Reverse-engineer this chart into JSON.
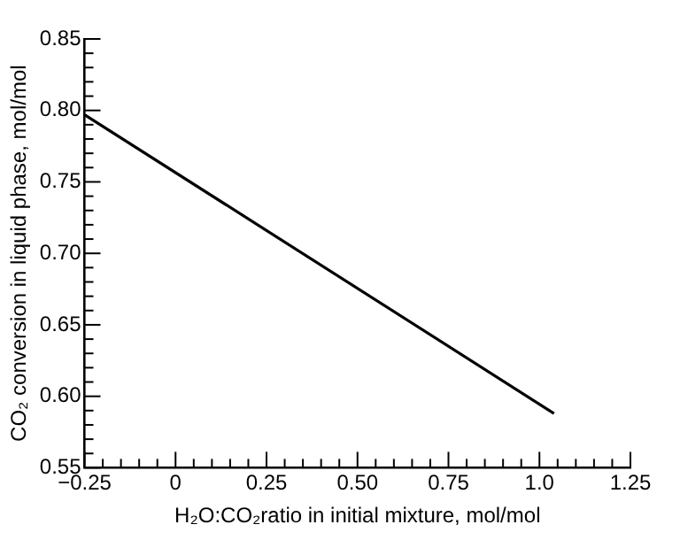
{
  "chart_data": {
    "type": "line",
    "xlabel": "H₂O:CO₂ratio in initial mixture, mol/mol",
    "ylabel": "CO₂ conversion in liquid phase, mol/mol",
    "x": [
      -0.25,
      1.04
    ],
    "series": [
      {
        "color": "#000000",
        "values": [
          0.797,
          0.588
        ]
      }
    ],
    "xlim": [
      -0.25,
      1.25
    ],
    "xticks": [
      {
        "value": -0.25,
        "label": "−0.25"
      },
      {
        "value": -0.2,
        "label": null
      },
      {
        "value": -0.15,
        "label": null
      },
      {
        "value": -0.1,
        "label": null
      },
      {
        "value": -0.05,
        "label": null
      },
      0,
      {
        "value": 0.05,
        "label": null
      },
      {
        "value": 0.1,
        "label": null
      },
      {
        "value": 0.15,
        "label": null
      },
      {
        "value": 0.2,
        "label": null
      },
      0.25,
      {
        "value": 0.3,
        "label": null
      },
      {
        "value": 0.35,
        "label": null
      },
      {
        "value": 0.4,
        "label": null
      },
      {
        "value": 0.45,
        "label": null
      },
      {
        "value": 0.5,
        "label": "0.50"
      },
      {
        "value": 0.55,
        "label": null
      },
      {
        "value": 0.6,
        "label": null
      },
      {
        "value": 0.65,
        "label": null
      },
      {
        "value": 0.7,
        "label": null
      },
      0.75,
      {
        "value": 0.8,
        "label": null
      },
      {
        "value": 0.85,
        "label": null
      },
      {
        "value": 0.9,
        "label": null
      },
      {
        "value": 0.95,
        "label": null
      },
      {
        "value": 1,
        "label": "1.0"
      },
      {
        "value": 1.05,
        "label": null
      },
      {
        "value": 1.1,
        "label": null
      },
      {
        "value": 1.15,
        "label": null
      },
      {
        "value": 1.2,
        "label": null
      },
      1.25
    ],
    "ylim": [
      0.55,
      0.85
    ],
    "yticks": [
      0.55,
      {
        "value": 0.56,
        "label": null
      },
      {
        "value": 0.57,
        "label": null
      },
      {
        "value": 0.58,
        "label": null
      },
      {
        "value": 0.59,
        "label": null
      },
      {
        "value": 0.6,
        "label": "0.60"
      },
      {
        "value": 0.61,
        "label": null
      },
      {
        "value": 0.62,
        "label": null
      },
      {
        "value": 0.63,
        "label": null
      },
      {
        "value": 0.64,
        "label": null
      },
      0.65,
      {
        "value": 0.66,
        "label": null
      },
      {
        "value": 0.67,
        "label": null
      },
      {
        "value": 0.68,
        "label": null
      },
      {
        "value": 0.69,
        "label": null
      },
      {
        "value": 0.7,
        "label": "0.70"
      },
      {
        "value": 0.71,
        "label": null
      },
      {
        "value": 0.72,
        "label": null
      },
      {
        "value": 0.73,
        "label": null
      },
      {
        "value": 0.74,
        "label": null
      },
      0.75,
      {
        "value": 0.76,
        "label": null
      },
      {
        "value": 0.77,
        "label": null
      },
      {
        "value": 0.78,
        "label": null
      },
      {
        "value": 0.79,
        "label": null
      },
      {
        "value": 0.8,
        "label": "0.80"
      },
      {
        "value": 0.81,
        "label": null
      },
      {
        "value": 0.82,
        "label": null
      },
      {
        "value": 0.83,
        "label": null
      },
      {
        "value": 0.84,
        "label": null
      },
      0.85
    ],
    "grid": false,
    "legend": false,
    "marker": "none",
    "line_style": "solid"
  }
}
